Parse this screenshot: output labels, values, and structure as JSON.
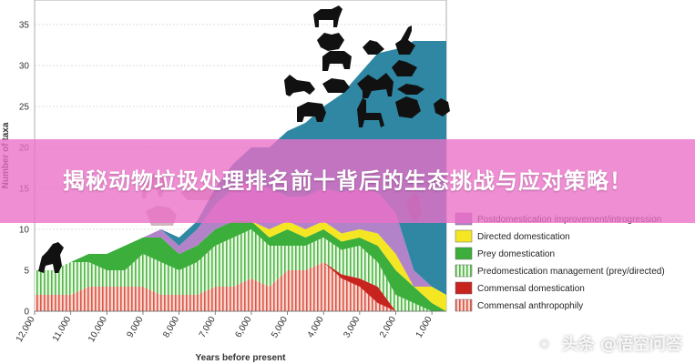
{
  "chart_data": {
    "type": "area",
    "ylabel": "Number of taxa",
    "xlabel": "Years before present",
    "ylim": [
      0,
      38
    ],
    "xlim": [
      12000,
      600
    ],
    "yticks": [
      0,
      5,
      10,
      15,
      20,
      25,
      30,
      35
    ],
    "xticks": [
      12000,
      11000,
      10000,
      9000,
      8000,
      7000,
      6000,
      5000,
      4000,
      3000,
      2000,
      1000
    ],
    "xtick_labels": [
      "12,000",
      "11,000",
      "10,000",
      "9,000",
      "8,000",
      "7,000",
      "6,000",
      "5,000",
      "4,000",
      "3,000",
      "2,000",
      "1,000"
    ],
    "x": [
      12000,
      11500,
      11000,
      10500,
      10000,
      9500,
      9000,
      8500,
      8000,
      7500,
      7000,
      6500,
      6000,
      5500,
      5000,
      4500,
      4000,
      3500,
      3000,
      2500,
      2000,
      1500,
      1000,
      600
    ],
    "series": [
      {
        "name": "Commensal anthropophily",
        "color": "#f2b3a8",
        "pattern": "stripe",
        "values": [
          2,
          2,
          2,
          3,
          3,
          3,
          3,
          2,
          2,
          2,
          3,
          3,
          4,
          3,
          5,
          5,
          6,
          4,
          3,
          1,
          0,
          0,
          0,
          0
        ]
      },
      {
        "name": "Commensal domestication",
        "color": "#c8241f",
        "pattern": "solid",
        "values": [
          0,
          0,
          0,
          0,
          0,
          0,
          0,
          0,
          0,
          0,
          0,
          0,
          0,
          0,
          0,
          0,
          0,
          0.5,
          1,
          2,
          0,
          0,
          0,
          0
        ]
      },
      {
        "name": "Predomestication management (prey/directed)",
        "color": "#c6efbd",
        "pattern": "stripe",
        "values": [
          3,
          3,
          4,
          3,
          2,
          2,
          4,
          4,
          3,
          4,
          5,
          6,
          6,
          5,
          3,
          3,
          3,
          3,
          4,
          3,
          2,
          1,
          0,
          0
        ]
      },
      {
        "name": "Prey domestication",
        "color": "#3cae3c",
        "pattern": "solid",
        "values": [
          0,
          0,
          0,
          1,
          2,
          3,
          2,
          3,
          2,
          2,
          2,
          2,
          1,
          1,
          2,
          1,
          1,
          1,
          1,
          2,
          3,
          2,
          1,
          0
        ]
      },
      {
        "name": "Directed domestication",
        "color": "#f5e623",
        "pattern": "solid",
        "values": [
          0,
          0,
          0,
          0,
          0,
          0,
          0,
          0,
          0,
          0,
          0,
          0,
          0,
          1,
          1,
          1,
          1,
          1,
          1,
          1.5,
          2,
          0,
          2,
          2
        ]
      },
      {
        "name": "Postdomestication improvement/introgression",
        "color": "#b283c9",
        "pattern": "solid",
        "values": [
          0,
          0,
          0,
          0,
          0,
          0,
          0,
          1,
          1,
          2,
          3,
          4,
          5,
          5,
          3,
          4,
          4,
          5,
          5,
          5,
          5,
          2,
          0,
          0
        ]
      },
      {
        "name": "",
        "color": "#2f87a3",
        "pattern": "solid",
        "values": [
          0,
          0,
          0,
          0,
          0,
          0,
          0,
          0,
          1,
          1,
          2,
          3,
          4,
          5,
          8,
          9,
          10,
          12,
          14,
          17,
          20,
          28,
          30,
          31
        ]
      }
    ],
    "legend_position": "bottom-right"
  },
  "overlay": {
    "banner_title": "揭秘动物垃圾处理排名前十背后的生态挑战与应对策略！",
    "watermark": "头条 @悟空问答"
  }
}
